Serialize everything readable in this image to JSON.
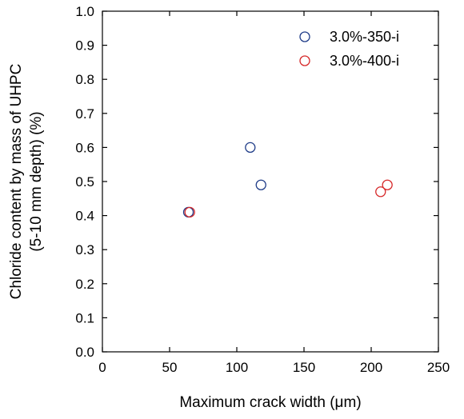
{
  "chart_data": {
    "type": "scatter",
    "xlabel": "Maximum crack width (μm)",
    "ylabel_lines": [
      "Chloride content by mass of UHPC",
      "(5-10 mm depth) (%)"
    ],
    "xlim": [
      0,
      250
    ],
    "ylim": [
      0,
      1.0
    ],
    "x_ticks": [
      "0",
      "50",
      "100",
      "150",
      "200",
      "250"
    ],
    "y_ticks": [
      "0.0",
      "0.1",
      "0.2",
      "0.3",
      "0.4",
      "0.5",
      "0.6",
      "0.7",
      "0.8",
      "0.9",
      "1.0"
    ],
    "grid": false,
    "legend_position": "top-right",
    "series": [
      {
        "name": "3.0%-350-i",
        "color": "#1f3c88",
        "marker": "open-circle",
        "points": [
          {
            "x": 64,
            "y": 0.41
          },
          {
            "x": 110,
            "y": 0.6
          },
          {
            "x": 118,
            "y": 0.49
          }
        ]
      },
      {
        "name": "3.0%-400-i",
        "color": "#d62728",
        "marker": "open-circle",
        "points": [
          {
            "x": 65,
            "y": 0.41
          },
          {
            "x": 207,
            "y": 0.47
          },
          {
            "x": 212,
            "y": 0.49
          }
        ]
      }
    ]
  }
}
